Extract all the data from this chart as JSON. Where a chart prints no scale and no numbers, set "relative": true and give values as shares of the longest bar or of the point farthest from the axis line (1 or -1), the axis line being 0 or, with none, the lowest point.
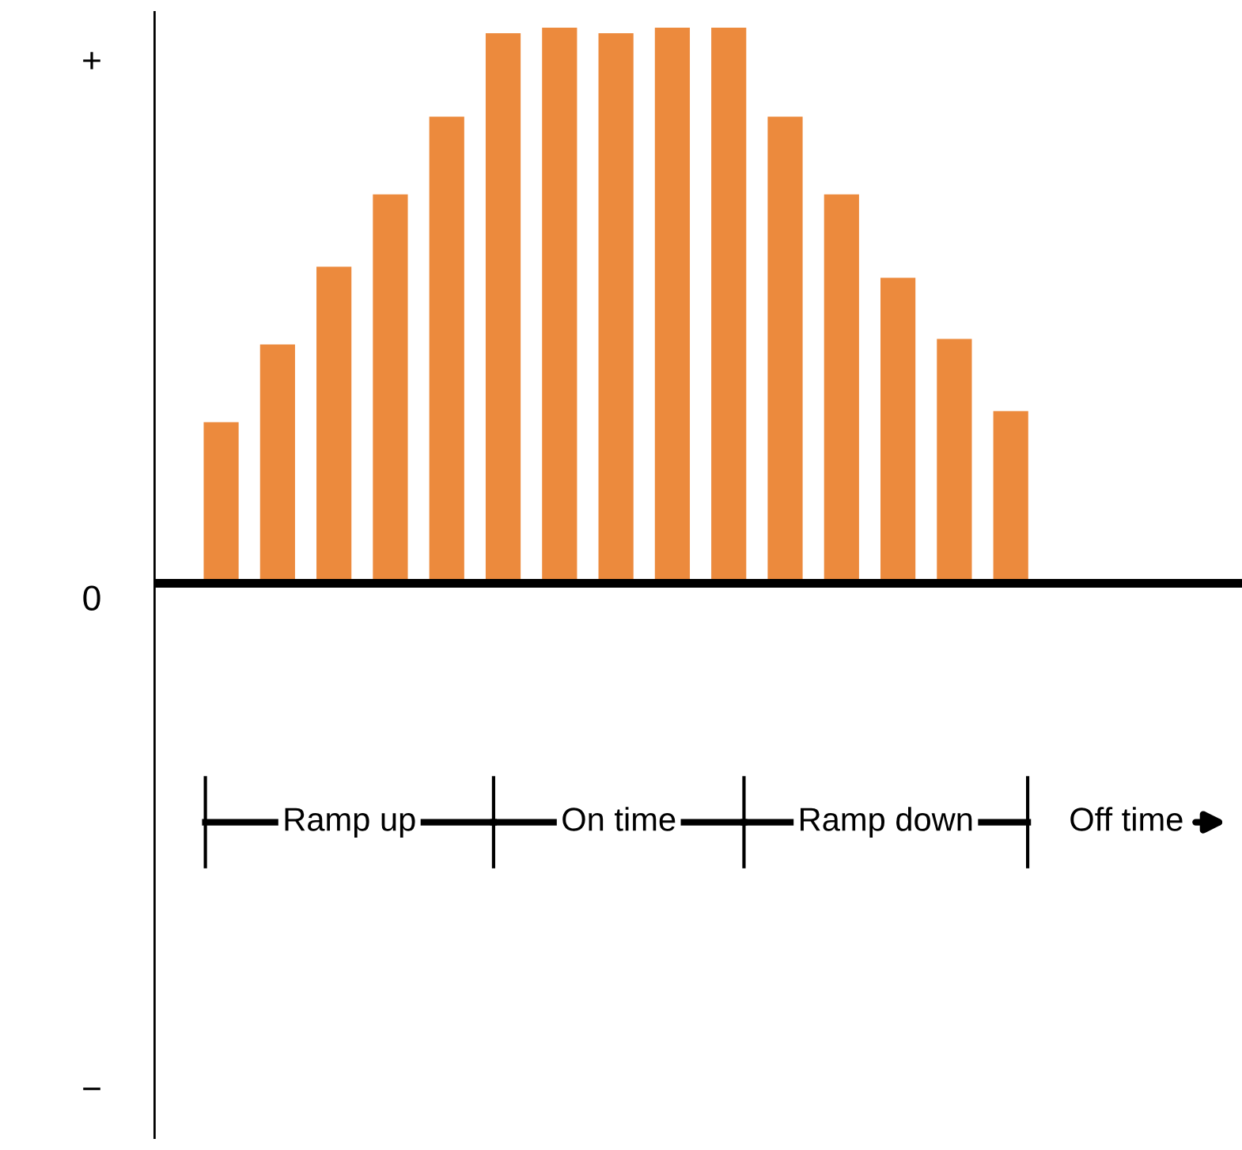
{
  "chart_data": {
    "type": "bar",
    "relative": true,
    "categories": [
      null,
      null,
      null,
      null,
      null,
      null,
      null,
      null,
      null,
      null,
      null,
      null,
      null,
      null,
      null
    ],
    "values": [
      0.29,
      0.43,
      0.57,
      0.7,
      0.84,
      0.99,
      1.0,
      0.99,
      1.0,
      1.0,
      0.84,
      0.7,
      0.55,
      0.44,
      0.31
    ],
    "color": "#ec8a3d",
    "annotations": [
      "+",
      "0",
      "−",
      "Ramp up",
      "On time",
      "Ramp down",
      "Off time"
    ]
  }
}
